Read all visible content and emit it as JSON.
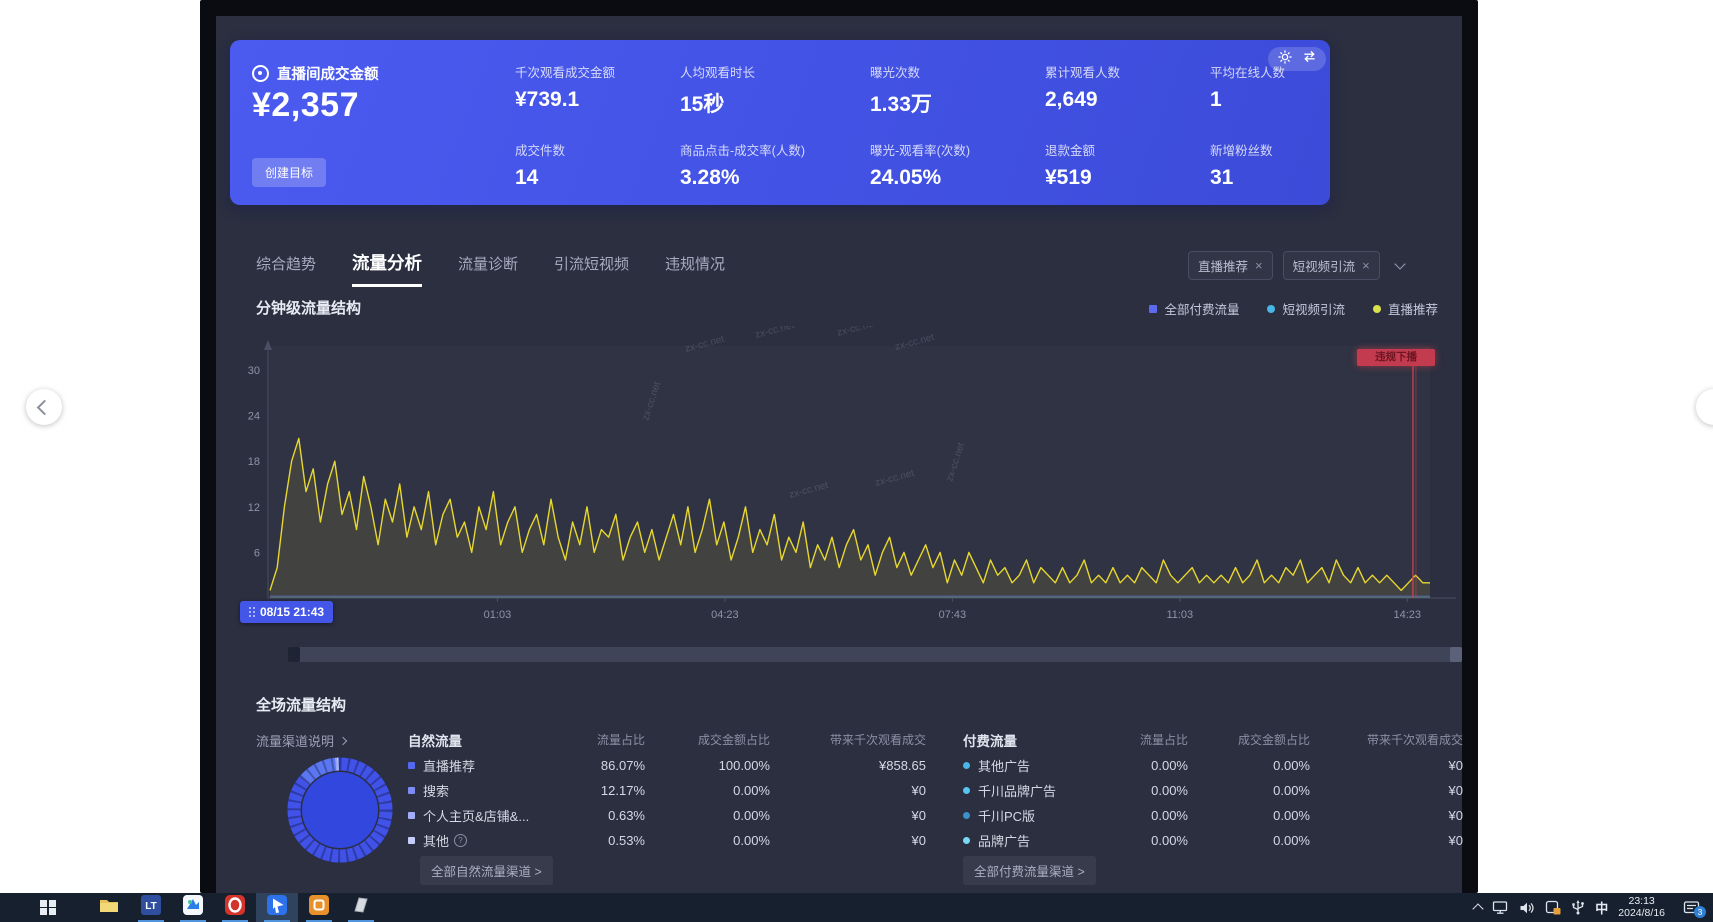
{
  "kpi": {
    "main": {
      "label": "直播间成交金额",
      "value": "¥2,357",
      "button_label": "创建目标"
    },
    "metrics": [
      {
        "label": "千次观看成交金额",
        "value": "¥739.1"
      },
      {
        "label": "人均观看时长",
        "value": "15秒"
      },
      {
        "label": "曝光次数",
        "value": "1.33万"
      },
      {
        "label": "累计观看人数",
        "value": "2,649"
      },
      {
        "label": "平均在线人数",
        "value": "1"
      },
      {
        "label": "成交件数",
        "value": "14"
      },
      {
        "label": "商品点击-成交率(人数)",
        "value": "3.28%"
      },
      {
        "label": "曝光-观看率(次数)",
        "value": "24.05%"
      },
      {
        "label": "退款金额",
        "value": "¥519"
      },
      {
        "label": "新增粉丝数",
        "value": "31"
      }
    ]
  },
  "tabs": [
    {
      "label": "综合趋势",
      "active": false
    },
    {
      "label": "流量分析",
      "active": true
    },
    {
      "label": "流量诊断",
      "active": false
    },
    {
      "label": "引流短视频",
      "active": false
    },
    {
      "label": "违规情况",
      "active": false
    }
  ],
  "filters": {
    "tags": [
      {
        "label": "直播推荐"
      },
      {
        "label": "短视频引流"
      }
    ]
  },
  "chart_data": {
    "type": "line",
    "title": "分钟级流量结构",
    "legend": [
      {
        "label": "全部付费流量",
        "color": "#5b6af0",
        "shape": "square"
      },
      {
        "label": "短视频引流",
        "color": "#49b6e8",
        "shape": "dot"
      },
      {
        "label": "直播推荐",
        "color": "#d9e14d",
        "shape": "dot"
      }
    ],
    "x_start_label": "08/15 21:43",
    "x_ticks": [
      {
        "label": "01:03",
        "minute": 200
      },
      {
        "label": "04:23",
        "minute": 400
      },
      {
        "label": "07:43",
        "minute": 600
      },
      {
        "label": "11:03",
        "minute": 800
      },
      {
        "label": "14:23",
        "minute": 1000
      }
    ],
    "total_minutes": 1020,
    "y_ticks": [
      6,
      12,
      18,
      24,
      30
    ],
    "ylim": [
      0,
      30
    ],
    "series": [
      {
        "name": "直播推荐",
        "color": "#e8d72e",
        "values": [
          1,
          4,
          12,
          18,
          21,
          14,
          17,
          10,
          15,
          18,
          11,
          14,
          9,
          16,
          12,
          7,
          13,
          10,
          15,
          8,
          12,
          9,
          14,
          7,
          11,
          13,
          8,
          10,
          6,
          12,
          9,
          14,
          7,
          10,
          12,
          6,
          9,
          11,
          7,
          13,
          8,
          5,
          10,
          7,
          12,
          6,
          9,
          8,
          11,
          5,
          8,
          10,
          6,
          9,
          5,
          8,
          11,
          7,
          12,
          6,
          9,
          13,
          7,
          10,
          5,
          8,
          12,
          6,
          9,
          7,
          11,
          5,
          8,
          6,
          10,
          4,
          7,
          5,
          8,
          4,
          7,
          9,
          5,
          7,
          3,
          6,
          8,
          4,
          6,
          3,
          5,
          7,
          4,
          6,
          2,
          5,
          3,
          6,
          4,
          2,
          5,
          3,
          4,
          2,
          3,
          5,
          2,
          4,
          3,
          2,
          4,
          2,
          3,
          5,
          2,
          3,
          2,
          4,
          2,
          3,
          2,
          4,
          3,
          2,
          5,
          3,
          2,
          3,
          4,
          2,
          3,
          2,
          3,
          2,
          4,
          2,
          3,
          5,
          2,
          3,
          2,
          4,
          3,
          5,
          2,
          3,
          4,
          2,
          5,
          3,
          2,
          4,
          2,
          3,
          2,
          3,
          2,
          1,
          2,
          3,
          2,
          2
        ]
      },
      {
        "name": "短视频引流",
        "color": "#49b6e8",
        "flat_value": 0
      },
      {
        "name": "全部付费流量",
        "color": "#5b6af0",
        "flat_value": 0
      }
    ],
    "event_marker": {
      "label": "违规下播",
      "minute": 1005,
      "color": "#d04055"
    },
    "watermark": "zx-cc.net"
  },
  "session": {
    "title": "全场流量结构",
    "channel_link": "流量渠道说明",
    "donut": {
      "shares": [
        86.07,
        12.17,
        0.63,
        0.53,
        0.6
      ],
      "colors": [
        "#4152e8",
        "#5b76f2",
        "#93a5f6",
        "#c0cafb",
        "#2c3bb4"
      ],
      "ring_base": "#27338f",
      "center_fill": "#3247dd"
    },
    "natural": {
      "headers": [
        "自然流量",
        "流量占比",
        "成交金额占比",
        "带来千次观看成交"
      ],
      "rows": [
        {
          "label": "直播推荐",
          "color": "#5468f0",
          "traffic_share": "86.07%",
          "gmv_share": "100.00%",
          "per_k_gmv": "¥858.65",
          "info": false
        },
        {
          "label": "搜索",
          "color": "#7d8cf4",
          "traffic_share": "12.17%",
          "gmv_share": "0.00%",
          "per_k_gmv": "¥0",
          "info": false
        },
        {
          "label": "个人主页&店铺&...",
          "color": "#a3adf7",
          "traffic_share": "0.63%",
          "gmv_share": "0.00%",
          "per_k_gmv": "¥0",
          "info": false
        },
        {
          "label": "其他",
          "color": "#c6cdfa",
          "traffic_share": "0.53%",
          "gmv_share": "0.00%",
          "per_k_gmv": "¥0",
          "info": true
        }
      ],
      "footer_link": "全部自然流量渠道 >"
    },
    "paid": {
      "headers": [
        "付费流量",
        "流量占比",
        "成交金额占比",
        "带来千次观看成交"
      ],
      "rows": [
        {
          "label": "其他广告",
          "color": "#49b6e8",
          "traffic_share": "0.00%",
          "gmv_share": "0.00%",
          "per_k_gmv": "¥0",
          "info": false
        },
        {
          "label": "千川品牌广告",
          "color": "#58c4f0",
          "traffic_share": "0.00%",
          "gmv_share": "0.00%",
          "per_k_gmv": "¥0",
          "info": false
        },
        {
          "label": "千川PC版",
          "color": "#3a92c8",
          "traffic_share": "0.00%",
          "gmv_share": "0.00%",
          "per_k_gmv": "¥0",
          "info": false
        },
        {
          "label": "品牌广告",
          "color": "#7ad8f5",
          "traffic_share": "0.00%",
          "gmv_share": "0.00%",
          "per_k_gmv": "¥0",
          "info": false
        }
      ],
      "footer_link": "全部付费流量渠道 >"
    }
  },
  "taskbar": {
    "apps": [
      {
        "name": "file-explorer",
        "underline": false,
        "highlight": false
      },
      {
        "name": "app-lt",
        "text": "LT",
        "underline": true,
        "highlight": false
      },
      {
        "name": "app-doc",
        "underline": true,
        "highlight": false
      },
      {
        "name": "app-browser",
        "underline": true,
        "highlight": false
      },
      {
        "name": "app-live",
        "underline": true,
        "highlight": true
      },
      {
        "name": "app-orange",
        "underline": true,
        "highlight": false
      },
      {
        "name": "app-gray",
        "underline": true,
        "highlight": false
      }
    ],
    "ime": "中",
    "time": "23:13",
    "date": "2024/8/16",
    "notification_count": "3"
  }
}
